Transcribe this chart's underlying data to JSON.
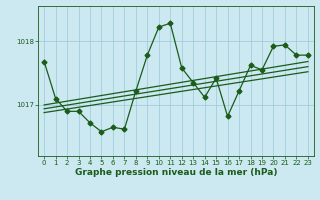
{
  "bg_color": "#cce8f0",
  "line_color": "#1a5c1a",
  "grid_color": "#9cc8d8",
  "xlabel": "Graphe pression niveau de la mer (hPa)",
  "xlabel_color": "#1a5c1a",
  "ylabel_ticks": [
    1017,
    1018
  ],
  "xlim": [
    -0.5,
    23.5
  ],
  "ylim": [
    1016.2,
    1018.55
  ],
  "xticks": [
    0,
    1,
    2,
    3,
    4,
    5,
    6,
    7,
    8,
    9,
    10,
    11,
    12,
    13,
    14,
    15,
    16,
    17,
    18,
    19,
    20,
    21,
    22,
    23
  ],
  "main_line_x": [
    0,
    1,
    2,
    3,
    4,
    5,
    6,
    7,
    8,
    9,
    10,
    11,
    12,
    13,
    14,
    15,
    16,
    17,
    18,
    19,
    20,
    21,
    22,
    23
  ],
  "main_line_y": [
    1017.68,
    1017.1,
    1016.9,
    1016.9,
    1016.72,
    1016.58,
    1016.65,
    1016.62,
    1017.22,
    1017.78,
    1018.22,
    1018.28,
    1017.58,
    1017.35,
    1017.12,
    1017.42,
    1016.82,
    1017.22,
    1017.62,
    1017.55,
    1017.92,
    1017.94,
    1017.78,
    1017.78
  ],
  "reg_line1_x": [
    0,
    23
  ],
  "reg_line1_y": [
    1016.88,
    1017.52
  ],
  "reg_line2_x": [
    0,
    23
  ],
  "reg_line2_y": [
    1016.94,
    1017.6
  ],
  "reg_line3_x": [
    0,
    23
  ],
  "reg_line3_y": [
    1017.0,
    1017.68
  ],
  "marker_size": 2.5,
  "linewidth": 0.9,
  "tick_fontsize": 5.0,
  "xlabel_fontsize": 6.5
}
